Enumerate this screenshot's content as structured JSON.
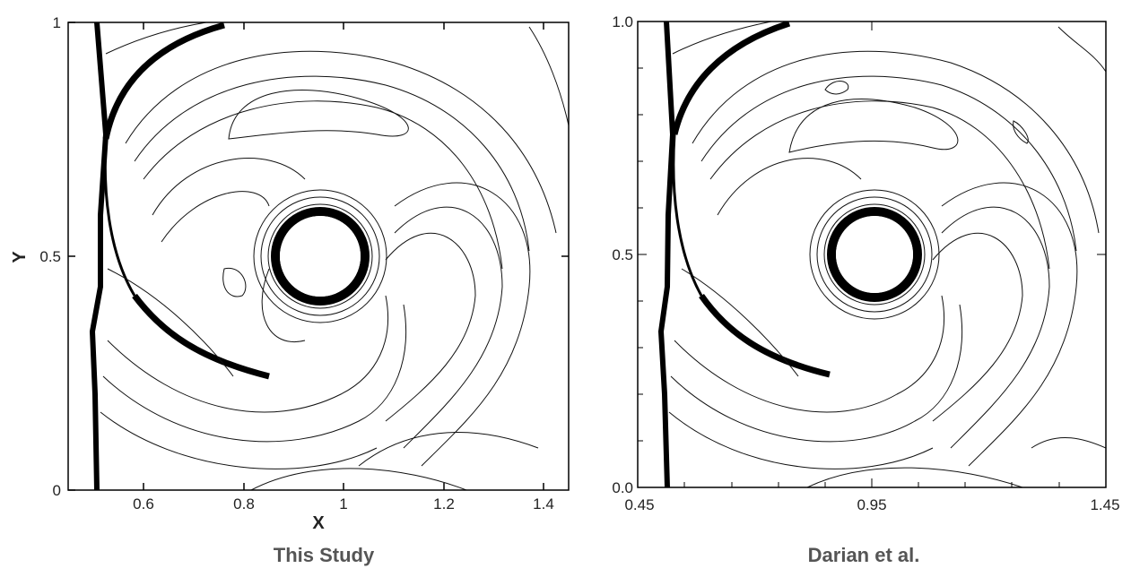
{
  "panels": [
    {
      "caption": "This Study",
      "xlabel": "X",
      "ylabel": "Y",
      "xticks": [
        "0.6",
        "0.8",
        "1",
        "1.2",
        "1.4"
      ],
      "yticks": [
        "0",
        "0.5",
        "1"
      ]
    },
    {
      "caption": "Darian et al.",
      "xticks": [
        "0.45",
        "0.95",
        "1.45"
      ],
      "yticks": [
        "0.0",
        "0.5",
        "1.0"
      ]
    }
  ]
}
